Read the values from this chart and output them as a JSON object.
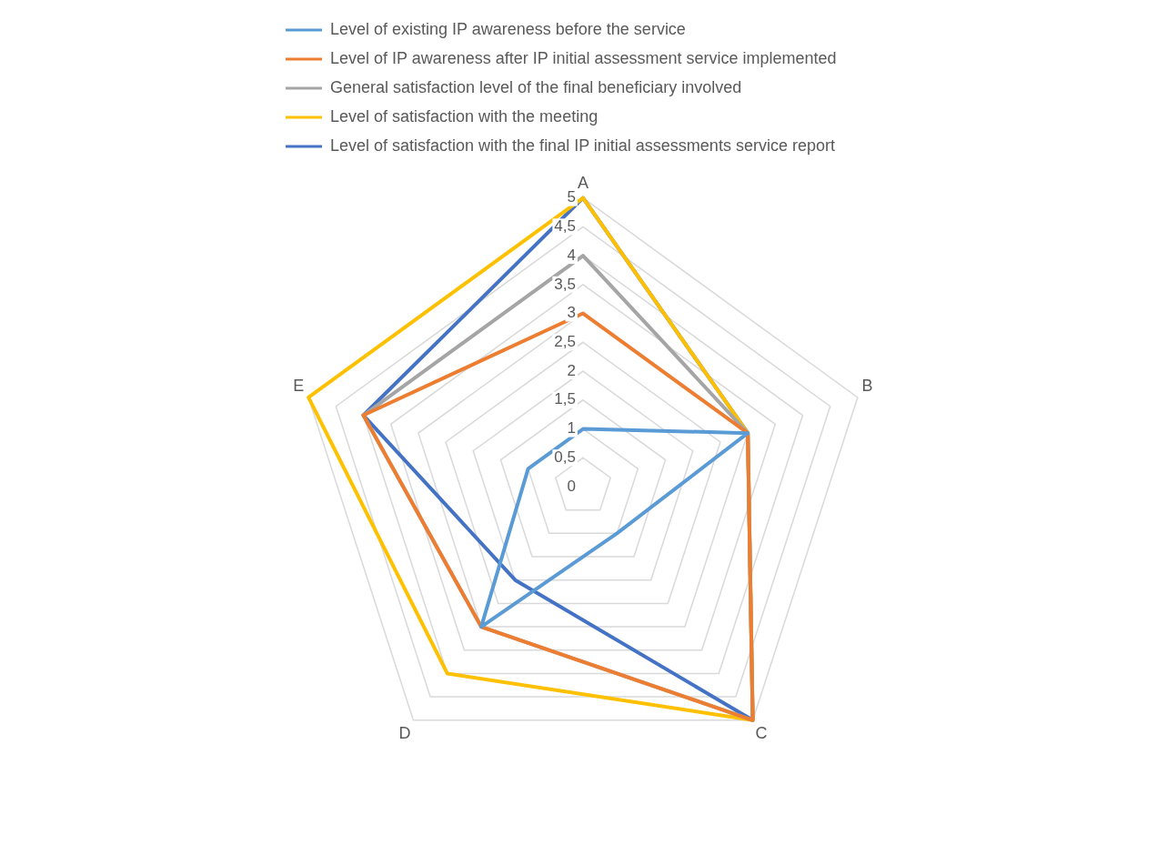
{
  "chart_data": {
    "type": "radar",
    "categories": [
      "A",
      "B",
      "C",
      "D",
      "E"
    ],
    "series": [
      {
        "name": "Level of existing IP awareness before the service",
        "color": "#5b9bd5",
        "values": [
          1,
          3,
          1,
          3,
          1
        ]
      },
      {
        "name": "Level of IP awareness after IP initial assessment service implemented",
        "color": "#ed7d31",
        "values": [
          3,
          3,
          5,
          3,
          4
        ]
      },
      {
        "name": "General satisfaction level of the final beneficiary involved",
        "color": "#a5a5a5",
        "values": [
          4,
          3,
          5,
          3,
          4
        ]
      },
      {
        "name": "Level of satisfaction with the meeting",
        "color": "#ffc000",
        "values": [
          5,
          3,
          5,
          4,
          5
        ]
      },
      {
        "name": "Level of satisfaction with the final IP initial assessments service report",
        "color": "#4472c4",
        "values": [
          5,
          3,
          5,
          2,
          4
        ]
      }
    ],
    "ylim": [
      0,
      5
    ],
    "yticks": [
      0,
      {
        "value": 0.5,
        "label": "0,5"
      },
      1,
      {
        "value": 1.5,
        "label": "1,5"
      },
      2,
      {
        "value": 2.5,
        "label": "2,5"
      },
      3,
      {
        "value": 3.5,
        "label": "3,5"
      },
      4,
      {
        "value": 4.5,
        "label": "4,5"
      },
      5
    ],
    "grid": true,
    "legend": "top",
    "marker": "none",
    "line_style": "solid"
  }
}
